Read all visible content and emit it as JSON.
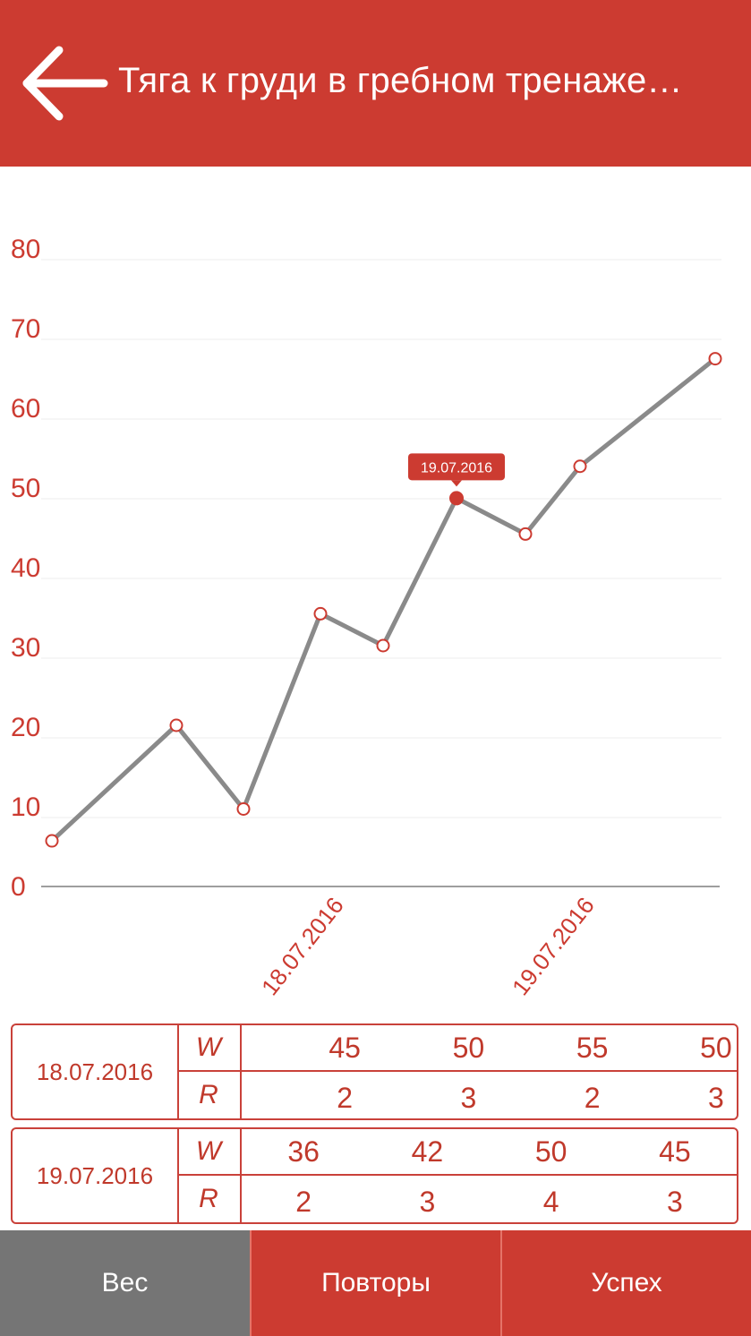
{
  "header": {
    "title": "Тяга к груди в гребном тренаже…",
    "back_icon": "arrow-left-icon"
  },
  "colors": {
    "primary": "#cc3b31",
    "line": "#8a8a8a",
    "tab_inactive": "#757575"
  },
  "chart_data": {
    "type": "line",
    "y_ticks": [
      "0",
      "10",
      "20",
      "30",
      "40",
      "50",
      "60",
      "70",
      "80"
    ],
    "ylim": [
      0,
      80
    ],
    "x_labels": [
      "18.07.2016",
      "19.07.2016"
    ],
    "values": [
      5.5,
      20,
      9.5,
      34,
      30,
      48.5,
      44,
      52.5,
      66
    ],
    "highlighted_index": 5,
    "tooltip": "19.07.2016"
  },
  "sessions": [
    {
      "date": "18.07.2016",
      "w_label": "W",
      "r_label": "R",
      "weights": [
        "45",
        "50",
        "55",
        "50"
      ],
      "reps": [
        "2",
        "3",
        "2",
        "3"
      ]
    },
    {
      "date": "19.07.2016",
      "w_label": "W",
      "r_label": "R",
      "weights": [
        "36",
        "42",
        "50",
        "45"
      ],
      "reps": [
        "2",
        "3",
        "4",
        "3"
      ]
    }
  ],
  "tabs": {
    "weight": "Вес",
    "reps": "Повторы",
    "success": "Успех"
  }
}
